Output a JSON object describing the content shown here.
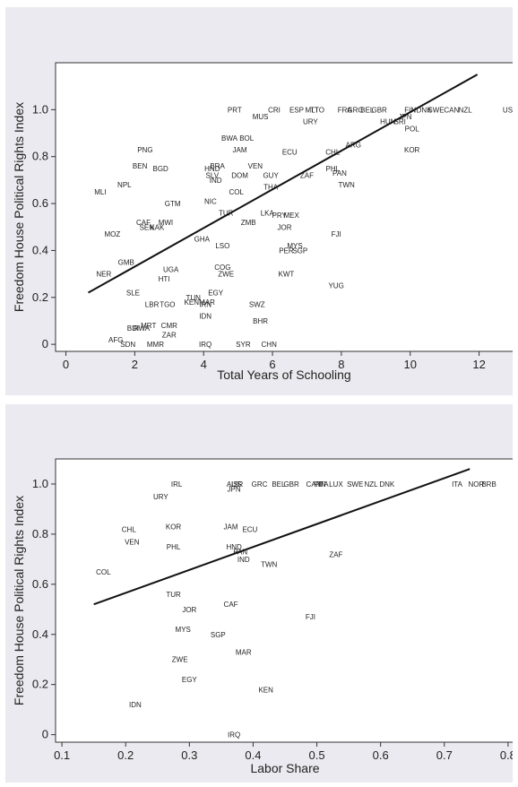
{
  "chart_data": [
    {
      "type": "scatter",
      "xlabel": "Total Years of Schooling",
      "ylabel": "Freedom House Political Rights Index",
      "xlim": [
        -0.3,
        13
      ],
      "ylim": [
        -0.03,
        1.2
      ],
      "x_ticks": [
        "0",
        "2",
        "4",
        "6",
        "8",
        "10",
        "12"
      ],
      "y_ticks": [
        "0",
        "0.2",
        "0.4",
        "0.6",
        "0.8",
        "1.0"
      ],
      "fit_line": [
        [
          0.65,
          0.22
        ],
        [
          11.95,
          1.15
        ]
      ],
      "points": [
        {
          "label": "PRT",
          "x": 4.9,
          "y": 1.0
        },
        {
          "label": "CRI",
          "x": 6.05,
          "y": 1.0
        },
        {
          "label": "ESP",
          "x": 6.7,
          "y": 1.0
        },
        {
          "label": "MLT",
          "x": 7.15,
          "y": 1.0
        },
        {
          "label": "TTO",
          "x": 7.3,
          "y": 1.0
        },
        {
          "label": "FRA",
          "x": 8.1,
          "y": 1.0
        },
        {
          "label": "GRC",
          "x": 8.4,
          "y": 1.0
        },
        {
          "label": "BEL",
          "x": 8.75,
          "y": 1.0
        },
        {
          "label": "GBR",
          "x": 9.1,
          "y": 1.0
        },
        {
          "label": "FIN",
          "x": 10.0,
          "y": 1.0
        },
        {
          "label": "DNK",
          "x": 10.4,
          "y": 1.0
        },
        {
          "label": "SWE",
          "x": 10.75,
          "y": 1.0
        },
        {
          "label": "CAN",
          "x": 11.2,
          "y": 1.0
        },
        {
          "label": "NZL",
          "x": 11.6,
          "y": 1.0
        },
        {
          "label": "USA",
          "x": 12.9,
          "y": 1.0
        },
        {
          "label": "MUS",
          "x": 5.65,
          "y": 0.97
        },
        {
          "label": "URY",
          "x": 7.1,
          "y": 0.95
        },
        {
          "label": "HUN",
          "x": 9.35,
          "y": 0.95
        },
        {
          "label": "SRI",
          "x": 9.7,
          "y": 0.95
        },
        {
          "label": "JPN",
          "x": 9.85,
          "y": 0.97
        },
        {
          "label": "POL",
          "x": 10.05,
          "y": 0.92
        },
        {
          "label": "BWA",
          "x": 4.75,
          "y": 0.88
        },
        {
          "label": "BOL",
          "x": 5.25,
          "y": 0.88
        },
        {
          "label": "ARG",
          "x": 8.35,
          "y": 0.85
        },
        {
          "label": "KOR",
          "x": 10.05,
          "y": 0.83
        },
        {
          "label": "PNG",
          "x": 2.3,
          "y": 0.83
        },
        {
          "label": "JAM",
          "x": 5.05,
          "y": 0.83
        },
        {
          "label": "ECU",
          "x": 6.5,
          "y": 0.82
        },
        {
          "label": "CHL",
          "x": 7.75,
          "y": 0.82
        },
        {
          "label": "BEN",
          "x": 2.15,
          "y": 0.76
        },
        {
          "label": "BGD",
          "x": 2.75,
          "y": 0.75
        },
        {
          "label": "BRA",
          "x": 4.4,
          "y": 0.76
        },
        {
          "label": "VEN",
          "x": 5.5,
          "y": 0.76
        },
        {
          "label": "HND",
          "x": 4.25,
          "y": 0.75
        },
        {
          "label": "PHL",
          "x": 7.75,
          "y": 0.75
        },
        {
          "label": "PAN",
          "x": 7.95,
          "y": 0.73
        },
        {
          "label": "SLV",
          "x": 4.25,
          "y": 0.72
        },
        {
          "label": "DOM",
          "x": 5.05,
          "y": 0.72
        },
        {
          "label": "GUY",
          "x": 5.95,
          "y": 0.72
        },
        {
          "label": "ZAF",
          "x": 7.0,
          "y": 0.72
        },
        {
          "label": "IND",
          "x": 4.35,
          "y": 0.7
        },
        {
          "label": "NPL",
          "x": 1.7,
          "y": 0.68
        },
        {
          "label": "TWN",
          "x": 8.15,
          "y": 0.68
        },
        {
          "label": "THA",
          "x": 5.95,
          "y": 0.67
        },
        {
          "label": "COL",
          "x": 4.95,
          "y": 0.65
        },
        {
          "label": "MLI",
          "x": 1.0,
          "y": 0.65
        },
        {
          "label": "NIC",
          "x": 4.2,
          "y": 0.61
        },
        {
          "label": "GTM",
          "x": 3.1,
          "y": 0.6
        },
        {
          "label": "TUR",
          "x": 4.65,
          "y": 0.56
        },
        {
          "label": "LKA",
          "x": 5.85,
          "y": 0.56
        },
        {
          "label": "PRY",
          "x": 6.2,
          "y": 0.55
        },
        {
          "label": "MEX",
          "x": 6.55,
          "y": 0.55
        },
        {
          "label": "CAF",
          "x": 2.25,
          "y": 0.52
        },
        {
          "label": "MWI",
          "x": 2.9,
          "y": 0.52
        },
        {
          "label": "ZMB",
          "x": 5.3,
          "y": 0.52
        },
        {
          "label": "SEN",
          "x": 2.35,
          "y": 0.5
        },
        {
          "label": "KAK",
          "x": 2.65,
          "y": 0.5
        },
        {
          "label": "JOR",
          "x": 6.35,
          "y": 0.5
        },
        {
          "label": "MOZ",
          "x": 1.35,
          "y": 0.47
        },
        {
          "label": "FJI",
          "x": 7.85,
          "y": 0.47
        },
        {
          "label": "GHA",
          "x": 3.95,
          "y": 0.45
        },
        {
          "label": "LSO",
          "x": 4.55,
          "y": 0.42
        },
        {
          "label": "MYS",
          "x": 6.65,
          "y": 0.42
        },
        {
          "label": "PER",
          "x": 6.4,
          "y": 0.4
        },
        {
          "label": "SGP",
          "x": 6.8,
          "y": 0.4
        },
        {
          "label": "GMB",
          "x": 1.75,
          "y": 0.35
        },
        {
          "label": "COG",
          "x": 4.55,
          "y": 0.33
        },
        {
          "label": "UGA",
          "x": 3.05,
          "y": 0.32
        },
        {
          "label": "ZWE",
          "x": 4.65,
          "y": 0.3
        },
        {
          "label": "KWT",
          "x": 6.4,
          "y": 0.3
        },
        {
          "label": "NER",
          "x": 1.1,
          "y": 0.3
        },
        {
          "label": "HTI",
          "x": 2.85,
          "y": 0.28
        },
        {
          "label": "YUG",
          "x": 7.85,
          "y": 0.25
        },
        {
          "label": "SLE",
          "x": 1.95,
          "y": 0.22
        },
        {
          "label": "EGY",
          "x": 4.35,
          "y": 0.22
        },
        {
          "label": "TUN",
          "x": 3.7,
          "y": 0.2
        },
        {
          "label": "KEN",
          "x": 3.65,
          "y": 0.18
        },
        {
          "label": "MAR",
          "x": 4.1,
          "y": 0.18
        },
        {
          "label": "LBR",
          "x": 2.5,
          "y": 0.17
        },
        {
          "label": "TGO",
          "x": 2.95,
          "y": 0.17
        },
        {
          "label": "IRN",
          "x": 4.05,
          "y": 0.17
        },
        {
          "label": "SWZ",
          "x": 5.55,
          "y": 0.17
        },
        {
          "label": "IDN",
          "x": 4.05,
          "y": 0.12
        },
        {
          "label": "BHR",
          "x": 5.65,
          "y": 0.1
        },
        {
          "label": "CMR",
          "x": 3.0,
          "y": 0.08
        },
        {
          "label": "MRT",
          "x": 2.4,
          "y": 0.08
        },
        {
          "label": "BDI",
          "x": 1.95,
          "y": 0.07
        },
        {
          "label": "RWA",
          "x": 2.2,
          "y": 0.07
        },
        {
          "label": "ZAR",
          "x": 3.0,
          "y": 0.04
        },
        {
          "label": "AFG",
          "x": 1.45,
          "y": 0.02
        },
        {
          "label": "SDN",
          "x": 1.8,
          "y": 0.0
        },
        {
          "label": "MMR",
          "x": 2.6,
          "y": 0.0
        },
        {
          "label": "IRQ",
          "x": 4.05,
          "y": 0.0
        },
        {
          "label": "SYR",
          "x": 5.15,
          "y": 0.0
        },
        {
          "label": "CHN",
          "x": 5.9,
          "y": 0.0
        }
      ]
    },
    {
      "type": "scatter",
      "xlabel": "Labor Share",
      "ylabel": "Freedom House Political Rights Index",
      "xlim": [
        0.09,
        0.81
      ],
      "ylim": [
        -0.03,
        1.1
      ],
      "x_ticks": [
        "0.1",
        "0.2",
        "0.3",
        "0.4",
        "0.5",
        "0.6",
        "0.7",
        "0.8"
      ],
      "y_ticks": [
        "0",
        "0.2",
        "0.4",
        "0.6",
        "0.8",
        "1.0"
      ],
      "fit_line": [
        [
          0.15,
          0.52
        ],
        [
          0.74,
          1.06
        ]
      ],
      "points": [
        {
          "label": "IRL",
          "x": 0.28,
          "y": 1.0
        },
        {
          "label": "AUS",
          "x": 0.37,
          "y": 1.0
        },
        {
          "label": "ISR",
          "x": 0.375,
          "y": 1.0
        },
        {
          "label": "GRC",
          "x": 0.41,
          "y": 1.0
        },
        {
          "label": "BEL",
          "x": 0.44,
          "y": 1.0
        },
        {
          "label": "GBR",
          "x": 0.46,
          "y": 1.0
        },
        {
          "label": "CAN",
          "x": 0.495,
          "y": 1.0
        },
        {
          "label": "FIN",
          "x": 0.505,
          "y": 1.0
        },
        {
          "label": "ITA",
          "x": 0.51,
          "y": 1.0
        },
        {
          "label": "LUX",
          "x": 0.53,
          "y": 1.0
        },
        {
          "label": "SWE",
          "x": 0.56,
          "y": 1.0
        },
        {
          "label": "NZL",
          "x": 0.585,
          "y": 1.0
        },
        {
          "label": "DNK",
          "x": 0.61,
          "y": 1.0
        },
        {
          "label": "ITA",
          "x": 0.72,
          "y": 1.0
        },
        {
          "label": "NOR",
          "x": 0.75,
          "y": 1.0
        },
        {
          "label": "BRB",
          "x": 0.77,
          "y": 1.0
        },
        {
          "label": "JPN",
          "x": 0.37,
          "y": 0.98
        },
        {
          "label": "URY",
          "x": 0.255,
          "y": 0.95
        },
        {
          "label": "KOR",
          "x": 0.275,
          "y": 0.83
        },
        {
          "label": "JAM",
          "x": 0.365,
          "y": 0.83
        },
        {
          "label": "ECU",
          "x": 0.395,
          "y": 0.82
        },
        {
          "label": "CHL",
          "x": 0.205,
          "y": 0.82
        },
        {
          "label": "VEN",
          "x": 0.21,
          "y": 0.77
        },
        {
          "label": "PHL",
          "x": 0.275,
          "y": 0.75
        },
        {
          "label": "HND",
          "x": 0.37,
          "y": 0.75
        },
        {
          "label": "PAN",
          "x": 0.38,
          "y": 0.73
        },
        {
          "label": "IND",
          "x": 0.385,
          "y": 0.7
        },
        {
          "label": "TWN",
          "x": 0.425,
          "y": 0.68
        },
        {
          "label": "ZAF",
          "x": 0.53,
          "y": 0.72
        },
        {
          "label": "COL",
          "x": 0.165,
          "y": 0.65
        },
        {
          "label": "TUR",
          "x": 0.275,
          "y": 0.56
        },
        {
          "label": "CAF",
          "x": 0.365,
          "y": 0.52
        },
        {
          "label": "JOR",
          "x": 0.3,
          "y": 0.5
        },
        {
          "label": "FJI",
          "x": 0.49,
          "y": 0.47
        },
        {
          "label": "MYS",
          "x": 0.29,
          "y": 0.42
        },
        {
          "label": "SGP",
          "x": 0.345,
          "y": 0.4
        },
        {
          "label": "MAR",
          "x": 0.385,
          "y": 0.33
        },
        {
          "label": "ZWE",
          "x": 0.285,
          "y": 0.3
        },
        {
          "label": "EGY",
          "x": 0.3,
          "y": 0.22
        },
        {
          "label": "KEN",
          "x": 0.42,
          "y": 0.18
        },
        {
          "label": "IDN",
          "x": 0.215,
          "y": 0.12
        },
        {
          "label": "IRQ",
          "x": 0.37,
          "y": 0.0
        }
      ]
    }
  ]
}
